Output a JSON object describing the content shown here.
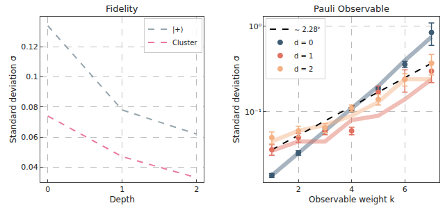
{
  "chart_data": [
    {
      "type": "line",
      "title": "Fidelity",
      "x_label": "Depth",
      "y_label": "Standard deviation σ",
      "x": [
        0,
        1,
        2
      ],
      "xlim": [
        -0.1,
        2.1
      ],
      "xticks": [
        0,
        1,
        2
      ],
      "ylim": [
        0.03,
        0.14
      ],
      "yticks": [
        0.04,
        0.06,
        0.08,
        0.1,
        0.12
      ],
      "grid": true,
      "legend": "upper right",
      "line_style": "dashed",
      "series": [
        {
          "name": "|+⟩",
          "color": "#95a5ad",
          "marker": "circle",
          "values": [
            0.134,
            0.078,
            0.062
          ]
        },
        {
          "name": "Cluster",
          "color": "#e9799e",
          "marker": "circle",
          "values": [
            0.074,
            0.047,
            0.033
          ]
        }
      ]
    },
    {
      "type": "scatter",
      "title": "Pauli Observable",
      "x_label": "Observable weight k",
      "y_label": "Standard deviation σ",
      "x": [
        1,
        2,
        3,
        4,
        5,
        6,
        7
      ],
      "xlim": [
        0.7,
        7.3
      ],
      "xticks": [
        2,
        4,
        6
      ],
      "log": "y",
      "ylim": [
        0.015,
        1.3
      ],
      "yticks": [
        {
          "value": 0.1,
          "label": "10⁻¹"
        },
        {
          "value": 1,
          "label": "10⁰"
        }
      ],
      "grid": true,
      "legend": "upper left",
      "series": [
        {
          "name": "∼ 2.28ᵏ",
          "type": "line",
          "line_style": "dashed",
          "color": "#000000",
          "x": [
            1,
            7
          ],
          "values": [
            0.036,
            0.37
          ]
        },
        {
          "name": "d = 0",
          "color": "#3d5a73",
          "marker": "circle",
          "values": [
            0.018,
            0.033,
            0.06,
            0.105,
            0.19,
            0.36,
            0.85
          ],
          "errors": [
            0.001,
            0.002,
            0.003,
            0.005,
            0.01,
            0.03,
            0.25
          ],
          "prediction": [
            0.018,
            0.033,
            0.06,
            0.11,
            0.2,
            0.4,
            0.75
          ]
        },
        {
          "name": "d = 1",
          "color": "#e07060",
          "marker": "circle",
          "values": [
            0.036,
            0.05,
            0.06,
            0.06,
            0.17,
            0.24,
            0.3
          ],
          "errors": [
            0.005,
            0.006,
            0.006,
            0.006,
            0.03,
            0.07,
            0.08
          ],
          "prediction": [
            0.035,
            0.045,
            0.045,
            0.08,
            0.09,
            0.14,
            0.24
          ]
        },
        {
          "name": "d = 2",
          "color": "#f4b183",
          "marker": "circle",
          "values": [
            0.05,
            0.06,
            0.065,
            0.11,
            0.14,
            0.24,
            0.37
          ],
          "errors": [
            0.008,
            0.008,
            0.008,
            0.01,
            0.02,
            0.04,
            0.1
          ],
          "prediction": [
            0.045,
            0.06,
            0.07,
            0.09,
            0.13,
            0.24,
            0.24
          ]
        }
      ]
    }
  ]
}
